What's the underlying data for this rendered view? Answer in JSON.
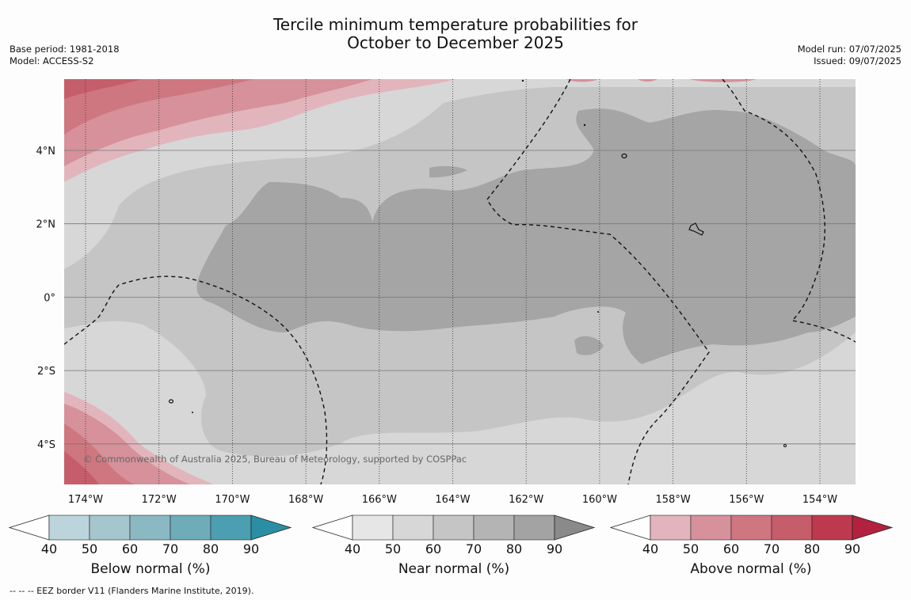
{
  "title": {
    "line1": "Tercile minimum temperature probabilities for",
    "line2": "October to December 2025"
  },
  "meta_left": {
    "base_period": "Base period: 1981-2018",
    "model": "Model: ACCESS-S2"
  },
  "meta_right": {
    "model_run": "Model run: 07/07/2025",
    "issued": "Issued: 09/07/2025"
  },
  "map": {
    "lon_labels": [
      "174°W",
      "172°W",
      "170°W",
      "168°W",
      "166°W",
      "164°W",
      "162°W",
      "160°W",
      "158°W",
      "156°W",
      "154°W"
    ],
    "lat_labels": [
      "4°N",
      "2°N",
      "0°",
      "2°S",
      "4°S"
    ],
    "copyright": "© Commonwealth of Australia 2025, Bureau of Meteorology, supported by COSPPac"
  },
  "legends": [
    {
      "title": "Below normal (%)",
      "ticks": [
        "40",
        "50",
        "60",
        "70",
        "80",
        "90"
      ],
      "colors": [
        "#bcd4db",
        "#a5c6cc",
        "#8ab8c3",
        "#6eacb8",
        "#4b9fb0",
        "#2a8fa4"
      ]
    },
    {
      "title": "Near normal (%)",
      "ticks": [
        "40",
        "50",
        "60",
        "70",
        "80",
        "90"
      ],
      "colors": [
        "#e6e6e6",
        "#d7d7d7",
        "#c5c5c5",
        "#b4b4b4",
        "#a3a3a3",
        "#8a8a8a"
      ]
    },
    {
      "title": "Above normal (%)",
      "ticks": [
        "40",
        "50",
        "60",
        "70",
        "80",
        "90"
      ],
      "colors": [
        "#e2b5bc",
        "#d6919a",
        "#ce7780",
        "#c55e6a",
        "#bd3a4e",
        "#b3213f"
      ]
    }
  ],
  "footnote": "--  --  -- EEZ border V11 (Flanders Marine Institute, 2019)."
}
